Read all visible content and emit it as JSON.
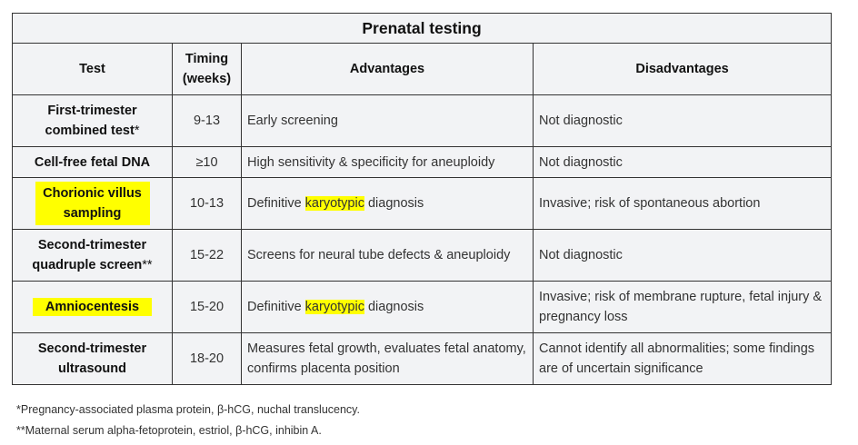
{
  "title": "Prenatal testing",
  "headers": {
    "test": "Test",
    "timing": "Timing (weeks)",
    "advantages": "Advantages",
    "disadvantages": "Disadvantages"
  },
  "rows": [
    {
      "test": "First-trimester combined test",
      "test_mark": "*",
      "timing": "9-13",
      "advantages": "Early screening",
      "disadvantages": "Not diagnostic"
    },
    {
      "test": "Cell-free fetal DNA",
      "timing": "≥10",
      "advantages": "High sensitivity & specificity for aneuploidy",
      "disadvantages": "Not diagnostic"
    },
    {
      "test": "Chorionic villus sampling",
      "timing": "10-13",
      "advantages_pre": "Definitive ",
      "advantages_hl": "karyotypic",
      "advantages_post": " diagnosis",
      "disadvantages": "Invasive; risk of spontaneous abortion"
    },
    {
      "test": "Second-trimester quadruple screen",
      "test_mark": "**",
      "timing": "15-22",
      "advantages": "Screens for neural tube defects & aneuploidy",
      "disadvantages": "Not diagnostic"
    },
    {
      "test": "Amniocentesis",
      "timing": "15-20",
      "advantages_pre": "Definitive ",
      "advantages_hl": "karyotypic",
      "advantages_post": " diagnosis",
      "disadvantages": "Invasive; risk of membrane rupture, fetal injury & pregnancy loss"
    },
    {
      "test": "Second-trimester ultrasound",
      "timing": "18-20",
      "advantages": "Measures fetal growth, evaluates fetal anatomy, confirms placenta position",
      "disadvantages": "Cannot identify all abnormalities; some findings are of uncertain significance"
    }
  ],
  "footnotes": [
    "*Pregnancy-associated plasma protein, β-hCG, nuchal translucency.",
    "**Maternal serum alpha-fetoprotein, estriol, β-hCG, inhibin A."
  ],
  "colors": {
    "highlight": "#ffff00",
    "cell_background": "#f2f3f5",
    "border": "#333333"
  }
}
